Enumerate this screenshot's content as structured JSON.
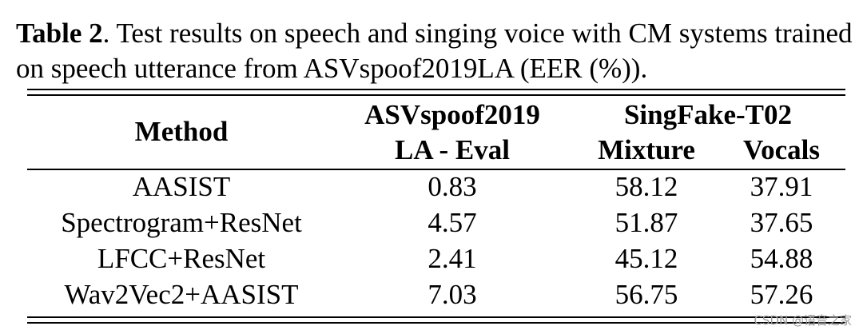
{
  "caption": {
    "label": "Table 2",
    "text": ". Test results on speech and singing voice with CM systems trained on speech utterance from ASVspoof2019LA (EER (%))."
  },
  "table": {
    "headers": {
      "method": "Method",
      "asv_line1": "ASVspoof2019",
      "asv_line2": "LA - Eval",
      "singfake": "SingFake-T02",
      "mixture": "Mixture",
      "vocals": "Vocals"
    },
    "rows": [
      {
        "method": "AASIST",
        "asv": "0.83",
        "mixture": "58.12",
        "vocals": "37.91"
      },
      {
        "method": "Spectrogram+ResNet",
        "asv": "4.57",
        "mixture": "51.87",
        "vocals": "37.65"
      },
      {
        "method": "LFCC+ResNet",
        "asv": "2.41",
        "mixture": "45.12",
        "vocals": "54.88"
      },
      {
        "method": "Wav2Vec2+AASIST",
        "asv": "7.03",
        "mixture": "56.75",
        "vocals": "57.26"
      }
    ]
  },
  "watermark": "CSDN @语音之家"
}
